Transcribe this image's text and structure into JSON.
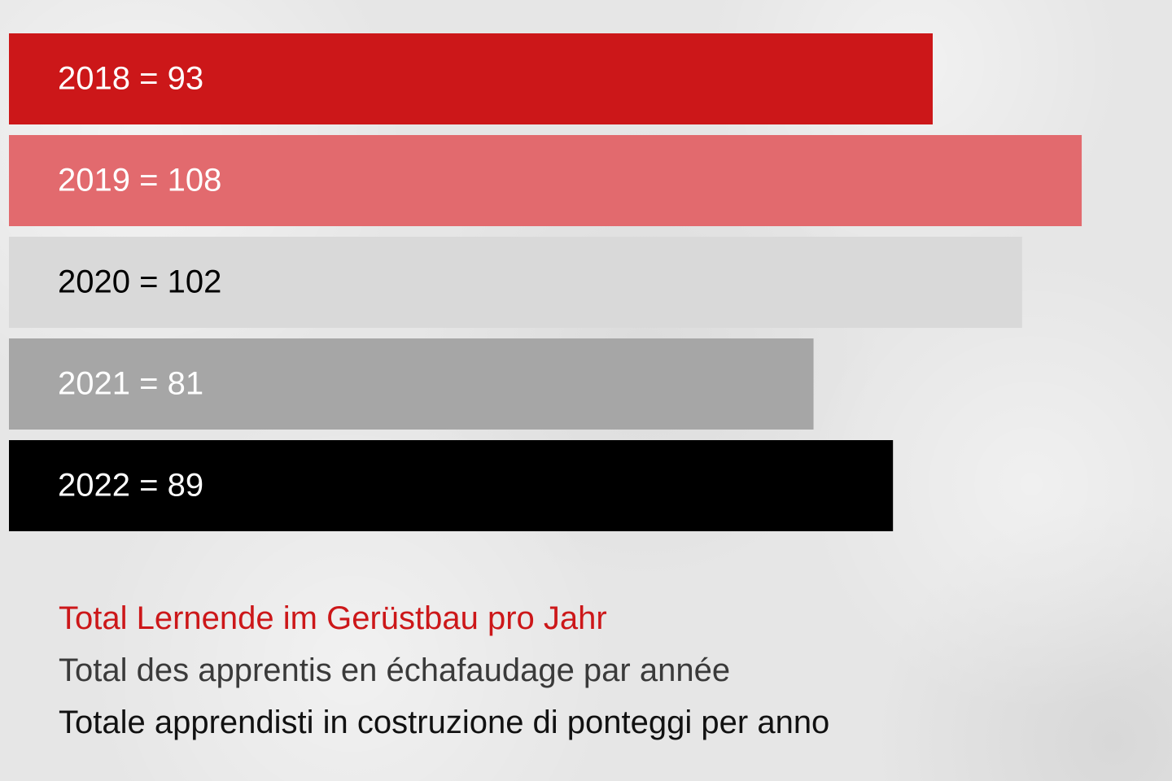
{
  "colors": {
    "red": "#cc1719",
    "pink": "#e26a6e",
    "light_gray": "#d9d9d9",
    "gray": "#a6a6a6",
    "black": "#000000",
    "caption_red": "#cc1719",
    "caption_gray": "#3a3a3a",
    "caption_black": "#111111"
  },
  "chart_data": {
    "type": "bar",
    "orientation": "horizontal",
    "categories": [
      "2018",
      "2019",
      "2020",
      "2021",
      "2022"
    ],
    "values": [
      93,
      108,
      102,
      81,
      89
    ],
    "labels": [
      "2018 = 93",
      "2019 = 108",
      "2020 = 102",
      "2021 = 81",
      "2022 = 89"
    ],
    "bar_colors": [
      "#cc1719",
      "#e26a6e",
      "#d9d9d9",
      "#a6a6a6",
      "#000000"
    ],
    "label_colors": [
      "#ffffff",
      "#ffffff",
      "#000000",
      "#ffffff",
      "#ffffff"
    ],
    "xlim": [
      0,
      117
    ],
    "grid": false,
    "legend": "none"
  },
  "captions": {
    "german": "Total Lernende im Gerüstbau pro Jahr",
    "french": "Total des apprentis en échafaudage par année",
    "italian": "Totale apprendisti in costruzione di ponteggi per anno"
  }
}
